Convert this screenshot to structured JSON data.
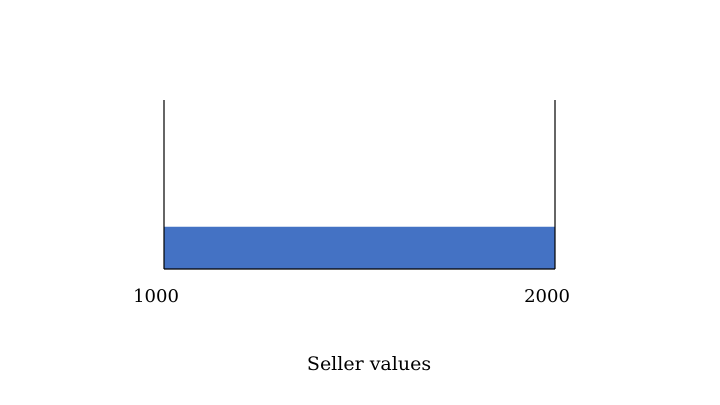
{
  "chart_data": {
    "type": "bar",
    "xlabel": "Seller values",
    "x_ticks": [
      "1000",
      "2000"
    ],
    "xlim": [
      1000,
      2000
    ],
    "bars": [
      {
        "x_start": 1000,
        "x_end": 2000,
        "value": 1
      }
    ],
    "ylim": [
      0,
      4
    ],
    "grid": false,
    "colors": {
      "bar": "#4472c4",
      "axis": "#000000"
    }
  }
}
